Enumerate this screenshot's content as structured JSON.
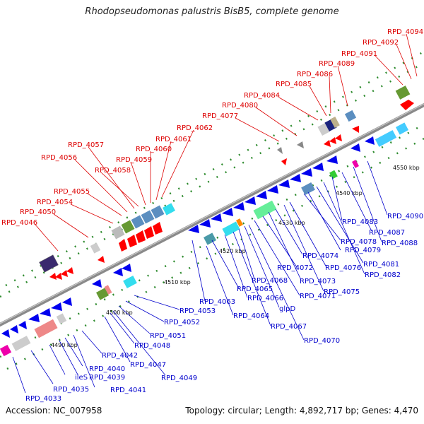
{
  "title": "Rhodopseudomonas palustris BisB5, complete genome",
  "footer": {
    "accession": "Accession: NC_007958",
    "topology": "Topology: circular; Length: 4,892,717 bp; Genes: 4,470"
  },
  "colors": {
    "forward_label": "#dd0000",
    "reverse_label": "#0000cc",
    "forward_gene": "#ff0000",
    "reverse_gene": "#0000ee",
    "backbone": "#8a8a8a",
    "tick_major": "#006600",
    "tick_minor": "#33aa33"
  },
  "ruler": [
    {
      "label": "4490 kbp"
    },
    {
      "label": "4500 kbp"
    },
    {
      "label": "4510 kbp"
    },
    {
      "label": "4520 kbp"
    },
    {
      "label": "4530 kbp"
    },
    {
      "label": "4540 kbp"
    },
    {
      "label": "4550 kbp"
    }
  ],
  "forward_genes": [
    {
      "name": "RPD_4046"
    },
    {
      "name": "RPD_4050"
    },
    {
      "name": "RPD_4054"
    },
    {
      "name": "RPD_4055"
    },
    {
      "name": "RPD_4056"
    },
    {
      "name": "RPD_4057"
    },
    {
      "name": "RPD_4058"
    },
    {
      "name": "RPD_4059"
    },
    {
      "name": "RPD_4060"
    },
    {
      "name": "RPD_4061"
    },
    {
      "name": "RPD_4062"
    },
    {
      "name": "RPD_4077"
    },
    {
      "name": "RPD_4080"
    },
    {
      "name": "RPD_4084"
    },
    {
      "name": "RPD_4085"
    },
    {
      "name": "RPD_4086"
    },
    {
      "name": "RPD_4089"
    },
    {
      "name": "RPD_4091"
    },
    {
      "name": "RPD_4092"
    },
    {
      "name": "RPD_4094"
    }
  ],
  "reverse_genes": [
    {
      "name": "RPD_4033"
    },
    {
      "name": "RPD_4035"
    },
    {
      "name": "ileS"
    },
    {
      "name": "RPD_4039"
    },
    {
      "name": "RPD_4040"
    },
    {
      "name": "RPD_4041"
    },
    {
      "name": "RPD_4042"
    },
    {
      "name": "RPD_4047"
    },
    {
      "name": "RPD_4048"
    },
    {
      "name": "RPD_4049"
    },
    {
      "name": "RPD_4051"
    },
    {
      "name": "RPD_4052"
    },
    {
      "name": "RPD_4053"
    },
    {
      "name": "RPD_4063"
    },
    {
      "name": "RPD_4064"
    },
    {
      "name": "RPD_4065"
    },
    {
      "name": "RPD_4066"
    },
    {
      "name": "RPD_4067"
    },
    {
      "name": "RPD_4068"
    },
    {
      "name": "glpD"
    },
    {
      "name": "RPD_4070"
    },
    {
      "name": "RPD_4071"
    },
    {
      "name": "RPD_4072"
    },
    {
      "name": "RPD_4073"
    },
    {
      "name": "RPD_4074"
    },
    {
      "name": "RPD_4075"
    },
    {
      "name": "RPD_4076"
    },
    {
      "name": "RPD_4078"
    },
    {
      "name": "RPD_4079"
    },
    {
      "name": "RPD_4081"
    },
    {
      "name": "RPD_4082"
    },
    {
      "name": "RPD_4083"
    },
    {
      "name": "RPD_4087"
    },
    {
      "name": "RPD_4088"
    },
    {
      "name": "RPD_4090"
    }
  ]
}
